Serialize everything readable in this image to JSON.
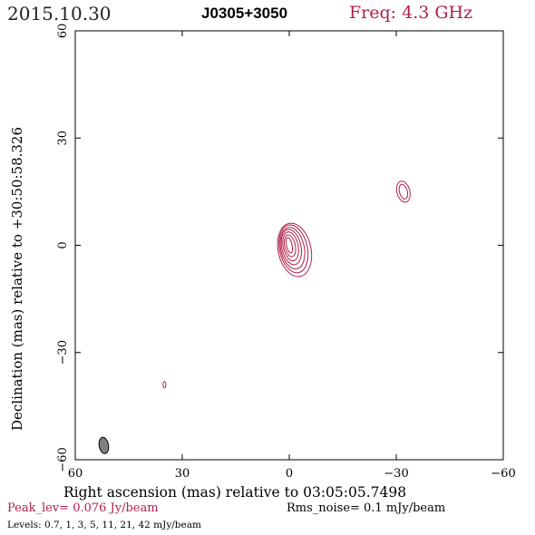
{
  "header": {
    "date": "2015.10.30",
    "source": "J0305+3050",
    "frequency": "Freq: 4.3 GHz"
  },
  "footer": {
    "peak": "Peak_lev=  0.076 Jy/beam",
    "rms": "Rms_noise=   0.1 mJy/beam",
    "levels": "Levels: 0.7,    1,    3,    5,   11,   21,   42 mJy/beam"
  },
  "colors": {
    "contour": "#b0204a",
    "axis": "#000000",
    "beam_fill": "#808080"
  },
  "chart_data": {
    "type": "contour",
    "xlabel": "Right ascension (mas) relative to 03:05:05.7498",
    "ylabel": "Declination (mas) relative to +30:50:58.326",
    "xlim": [
      60,
      -60
    ],
    "ylim": [
      -60,
      60
    ],
    "x_ticks": [
      60,
      30,
      0,
      -30,
      -60
    ],
    "y_ticks": [
      60,
      30,
      0,
      -30,
      -60
    ],
    "x_tick_labels": [
      "60",
      "30",
      "0",
      "−30",
      "−60"
    ],
    "y_tick_labels": [
      "60",
      "30",
      "0",
      "−30",
      "−60"
    ],
    "contour_levels_mJy_per_beam": [
      0.7,
      1,
      3,
      5,
      11,
      21,
      42
    ],
    "peak_Jy_per_beam": 0.076,
    "rms_noise_mJy_per_beam": 0.1,
    "components": [
      {
        "x": 0,
        "y": 0,
        "n_contours": 7
      },
      {
        "x": -32,
        "y": 15,
        "n_contours": 2
      },
      {
        "x": 35,
        "y": -39,
        "n_contours": 1
      }
    ],
    "beam": {
      "x": 52,
      "y": -56
    }
  }
}
